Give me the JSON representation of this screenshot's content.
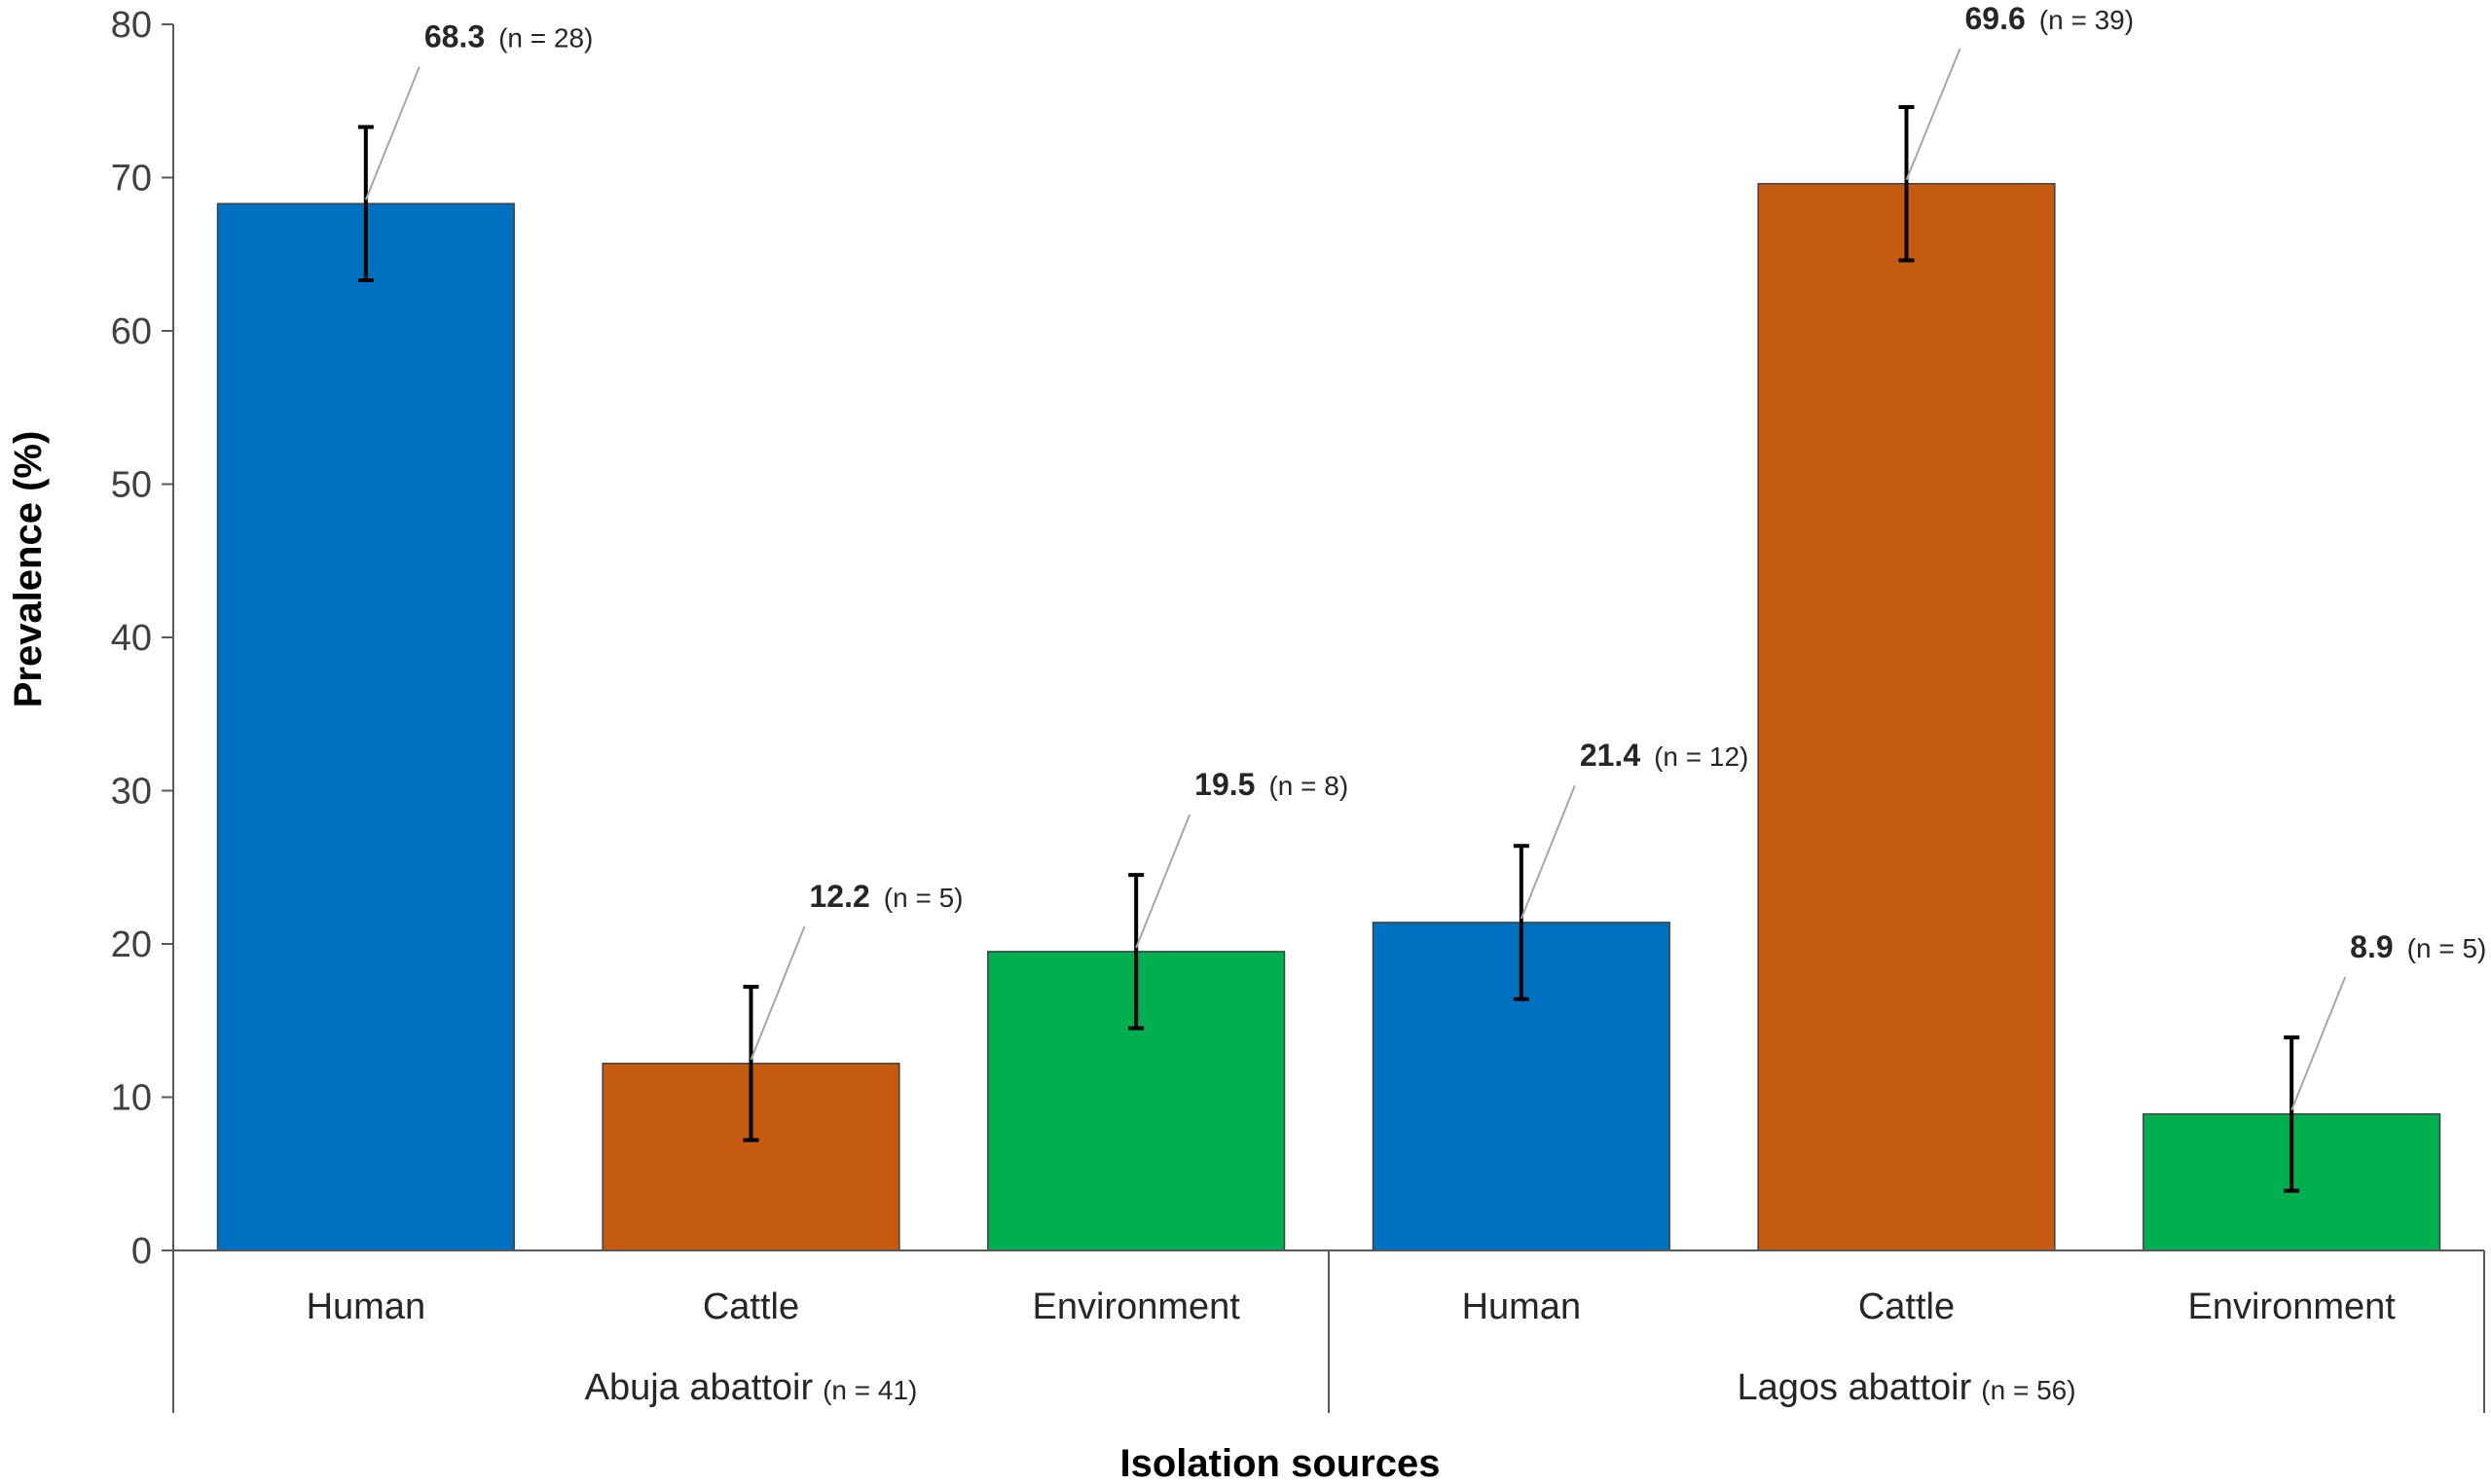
{
  "chart_data": {
    "type": "bar",
    "title": "",
    "xlabel": "Isolation sources",
    "ylabel": "Prevalence (%)",
    "ylim": [
      0,
      80
    ],
    "yticks": [
      "0",
      "10",
      "20",
      "30",
      "40",
      "50",
      "60",
      "70",
      "80"
    ],
    "grid": false,
    "colors": {
      "Human": "#0070c0",
      "Cattle": "#c55a11",
      "Environment": "#00b050"
    },
    "groups": [
      {
        "name": "Abuja abattoir",
        "n_label": "(n = 41)",
        "bars": [
          {
            "category": "Human",
            "value": 68.3,
            "value_label": "68.3",
            "n_label": "(n = 28)",
            "error": 5
          },
          {
            "category": "Cattle",
            "value": 12.2,
            "value_label": "12.2",
            "n_label": "(n = 5)",
            "error": 5
          },
          {
            "category": "Environment",
            "value": 19.5,
            "value_label": "19.5",
            "n_label": "(n = 8)",
            "error": 5
          }
        ]
      },
      {
        "name": "Lagos abattoir",
        "n_label": "(n = 56)",
        "bars": [
          {
            "category": "Human",
            "value": 21.4,
            "value_label": "21.4",
            "n_label": "(n = 12)",
            "error": 5
          },
          {
            "category": "Cattle",
            "value": 69.6,
            "value_label": "69.6",
            "n_label": "(n = 39)",
            "error": 5
          },
          {
            "category": "Environment",
            "value": 8.9,
            "value_label": "8.9",
            "n_label": "(n = 5)",
            "error": 5
          }
        ]
      }
    ]
  }
}
